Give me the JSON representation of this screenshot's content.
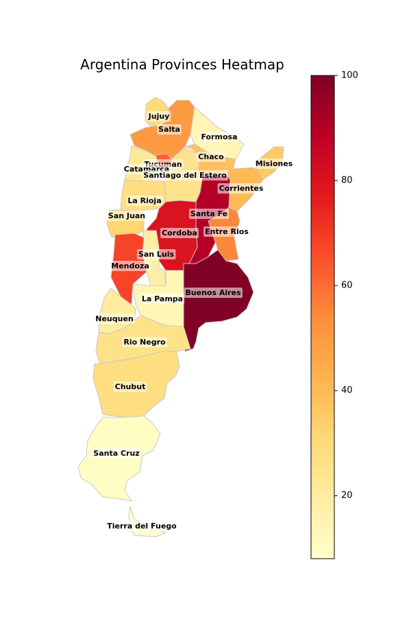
{
  "chart_data": {
    "type": "heatmap",
    "title": "Argentina Provinces Heatmap",
    "colormap": "YlOrRd",
    "color_range": [
      8,
      100
    ],
    "colorbar_ticks": [
      20,
      40,
      60,
      80,
      100
    ],
    "regions": [
      {
        "name": "Jujuy",
        "value": 30
      },
      {
        "name": "Salta",
        "value": 50
      },
      {
        "name": "Formosa",
        "value": 14
      },
      {
        "name": "Chaco",
        "value": 38
      },
      {
        "name": "Misiones",
        "value": 35
      },
      {
        "name": "Tucuman",
        "value": 62
      },
      {
        "name": "Catamarca",
        "value": 22
      },
      {
        "name": "Santiago del Estero",
        "value": 25
      },
      {
        "name": "Corrientes",
        "value": 40
      },
      {
        "name": "La Rioja",
        "value": 28
      },
      {
        "name": "San Juan",
        "value": 32
      },
      {
        "name": "Santa Fe",
        "value": 90
      },
      {
        "name": "Cordoba",
        "value": 80
      },
      {
        "name": "Entre Rios",
        "value": 55
      },
      {
        "name": "San Luis",
        "value": 18
      },
      {
        "name": "Mendoza",
        "value": 68
      },
      {
        "name": "La Pampa",
        "value": 14
      },
      {
        "name": "Buenos Aires",
        "value": 100
      },
      {
        "name": "Neuquen",
        "value": 20
      },
      {
        "name": "Rio Negro",
        "value": 26
      },
      {
        "name": "Chubut",
        "value": 28
      },
      {
        "name": "Santa Cruz",
        "value": 10
      },
      {
        "name": "Tierra del Fuego",
        "value": 9
      }
    ]
  }
}
